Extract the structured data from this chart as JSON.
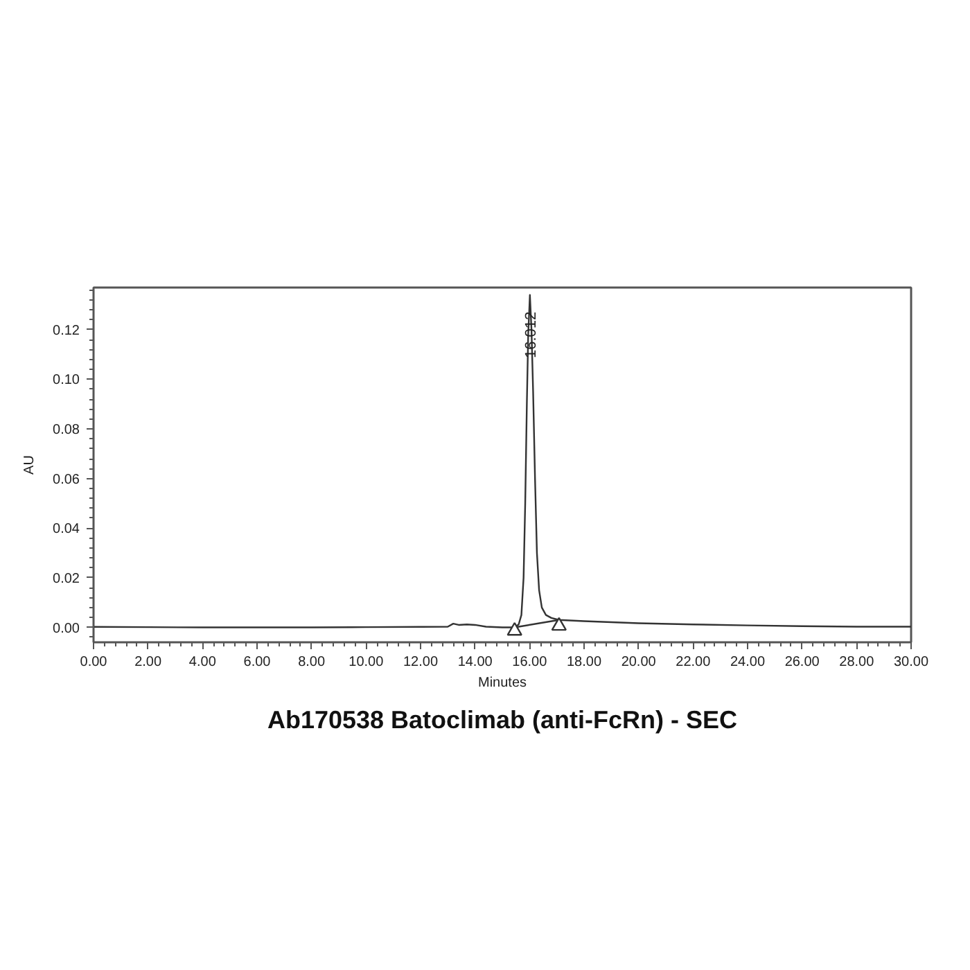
{
  "chart_data": {
    "type": "line",
    "title": "Ab170538 Batoclimab (anti-FcRn) - SEC",
    "xlabel": "Minutes",
    "ylabel": "AU",
    "xlim": [
      0,
      30
    ],
    "ylim": [
      -0.006,
      0.137
    ],
    "xticks": [
      {
        "value": 0,
        "label": "0.00"
      },
      {
        "value": 2,
        "label": "2.00"
      },
      {
        "value": 4,
        "label": "4.00"
      },
      {
        "value": 6,
        "label": "6.00"
      },
      {
        "value": 8,
        "label": "8.00"
      },
      {
        "value": 10,
        "label": "10.00"
      },
      {
        "value": 12,
        "label": "12.00"
      },
      {
        "value": 14,
        "label": "14.00"
      },
      {
        "value": 16,
        "label": "16.00"
      },
      {
        "value": 18,
        "label": "18.00"
      },
      {
        "value": 20,
        "label": "20.00"
      },
      {
        "value": 22,
        "label": "22.00"
      },
      {
        "value": 24,
        "label": "24.00"
      },
      {
        "value": 26,
        "label": "26.00"
      },
      {
        "value": 28,
        "label": "28.00"
      },
      {
        "value": 30,
        "label": "30.00"
      }
    ],
    "yticks": [
      {
        "value": 0,
        "label": "0.00"
      },
      {
        "value": 0.02,
        "label": "0.02"
      },
      {
        "value": 0.04,
        "label": "0.04"
      },
      {
        "value": 0.06,
        "label": "0.06"
      },
      {
        "value": 0.08,
        "label": "0.08"
      },
      {
        "value": 0.1,
        "label": "0.10"
      },
      {
        "value": 0.12,
        "label": "0.12"
      }
    ],
    "series": [
      {
        "color": "#333333",
        "x": [
          0,
          2,
          4,
          6,
          8,
          10,
          12,
          13.0,
          13.2,
          13.4,
          13.7,
          14.0,
          14.4,
          15.0,
          15.45,
          15.6,
          15.7,
          15.78,
          15.84,
          15.9,
          15.95,
          16.012,
          16.07,
          16.13,
          16.2,
          16.27,
          16.35,
          16.45,
          16.6,
          16.8,
          17.08,
          18,
          20,
          22,
          24,
          26,
          28,
          30
        ],
        "values": [
          0.0002,
          0.0001,
          0.0,
          0.0,
          0.0,
          0.0001,
          0.0002,
          0.0003,
          0.0015,
          0.001,
          0.0012,
          0.001,
          0.0003,
          0.0,
          0.0,
          0.0012,
          0.005,
          0.02,
          0.05,
          0.09,
          0.118,
          0.134,
          0.12,
          0.095,
          0.06,
          0.03,
          0.015,
          0.008,
          0.005,
          0.0038,
          0.003,
          0.0025,
          0.0017,
          0.0012,
          0.0008,
          0.0005,
          0.0003,
          0.0003
        ]
      },
      {
        "color": "#333333",
        "x": [
          15.45,
          17.08
        ],
        "values": [
          0.0,
          0.003
        ]
      },
      {
        "type": "scatter",
        "marker": "triangle",
        "color": "#333333",
        "x": [
          15.45,
          17.08
        ],
        "values": [
          -0.0014,
          0.0006
        ]
      }
    ],
    "annotations": [
      {
        "text": "16.012",
        "x": 16.012,
        "y": 0.134
      }
    ]
  }
}
